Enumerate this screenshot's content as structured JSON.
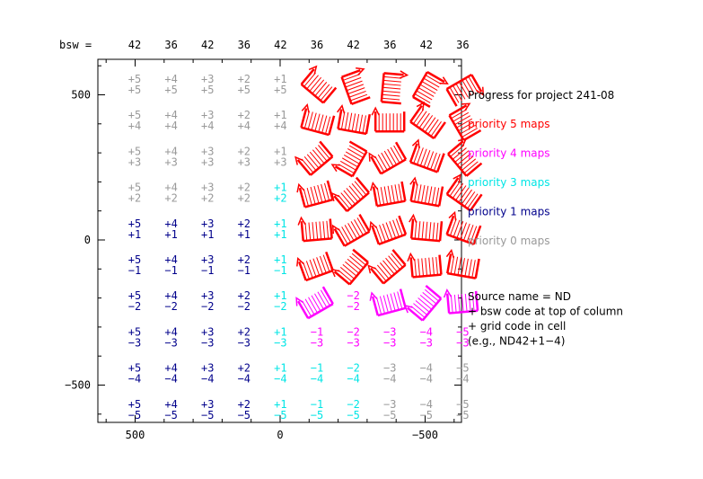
{
  "chart_data": {
    "type": "grid-map",
    "top_label": "bsw =",
    "x_ticks": [
      500,
      0,
      -500
    ],
    "y_ticks": [
      500,
      0,
      -500
    ],
    "xlim": [
      630,
      -630
    ],
    "ylim": [
      -630,
      630
    ],
    "bsw_codes": [
      "42",
      "36",
      "42",
      "36",
      "42",
      "36",
      "42",
      "36",
      "42",
      "36"
    ],
    "x_codes": [
      5,
      4,
      3,
      2,
      1,
      -1,
      -2,
      -3,
      -4,
      -5
    ],
    "y_codes": [
      5,
      4,
      3,
      2,
      1,
      -1,
      -2,
      -3,
      -4,
      -5
    ],
    "priority_grid": [
      [
        0,
        0,
        0,
        0,
        0,
        5,
        5,
        5,
        5,
        5
      ],
      [
        0,
        0,
        0,
        0,
        0,
        5,
        5,
        5,
        5,
        5
      ],
      [
        0,
        0,
        0,
        0,
        0,
        5,
        5,
        5,
        5,
        5
      ],
      [
        0,
        0,
        0,
        0,
        3,
        5,
        5,
        5,
        5,
        5
      ],
      [
        1,
        1,
        1,
        1,
        3,
        5,
        5,
        5,
        5,
        5
      ],
      [
        1,
        1,
        1,
        1,
        3,
        5,
        5,
        5,
        5,
        5
      ],
      [
        1,
        1,
        1,
        1,
        3,
        4,
        4,
        4,
        4,
        4
      ],
      [
        1,
        1,
        1,
        1,
        3,
        4,
        4,
        4,
        4,
        4
      ],
      [
        1,
        1,
        1,
        1,
        3,
        3,
        3,
        0,
        0,
        0
      ],
      [
        1,
        1,
        1,
        1,
        3,
        3,
        3,
        0,
        0,
        0
      ]
    ],
    "mapped": [
      [
        false,
        false,
        false,
        false,
        false,
        true,
        true,
        true,
        true,
        true
      ],
      [
        false,
        false,
        false,
        false,
        false,
        true,
        true,
        true,
        true,
        true
      ],
      [
        false,
        false,
        false,
        false,
        false,
        true,
        true,
        true,
        true,
        true
      ],
      [
        false,
        false,
        false,
        false,
        false,
        true,
        true,
        true,
        true,
        true
      ],
      [
        false,
        false,
        false,
        false,
        false,
        true,
        true,
        true,
        true,
        true
      ],
      [
        false,
        false,
        false,
        false,
        false,
        true,
        true,
        true,
        true,
        true
      ],
      [
        false,
        false,
        false,
        false,
        false,
        true,
        false,
        true,
        true,
        true
      ],
      [
        false,
        false,
        false,
        false,
        false,
        false,
        false,
        false,
        false,
        false
      ],
      [
        false,
        false,
        false,
        false,
        false,
        false,
        false,
        false,
        false,
        false
      ],
      [
        false,
        false,
        false,
        false,
        false,
        false,
        false,
        false,
        false,
        false
      ]
    ],
    "map_angles": [
      [
        0,
        0,
        0,
        0,
        0,
        40,
        70,
        95,
        120,
        150
      ],
      [
        0,
        0,
        0,
        0,
        0,
        15,
        10,
        0,
        35,
        60
      ],
      [
        0,
        0,
        0,
        0,
        0,
        320,
        300,
        330,
        20,
        50
      ],
      [
        0,
        0,
        0,
        0,
        0,
        345,
        320,
        350,
        10,
        35
      ],
      [
        0,
        0,
        0,
        0,
        0,
        355,
        330,
        340,
        5,
        20
      ],
      [
        0,
        0,
        0,
        0,
        0,
        340,
        310,
        320,
        355,
        10
      ],
      [
        0,
        0,
        0,
        0,
        0,
        330,
        0,
        345,
        310,
        355
      ],
      [
        0,
        0,
        0,
        0,
        0,
        0,
        0,
        0,
        0,
        0
      ],
      [
        0,
        0,
        0,
        0,
        0,
        0,
        0,
        0,
        0,
        0
      ],
      [
        0,
        0,
        0,
        0,
        0,
        0,
        0,
        0,
        0,
        0
      ]
    ],
    "legend": {
      "title": "Progress for project 241-08",
      "items": [
        {
          "label": "priority 5 maps",
          "priority": 5
        },
        {
          "label": "priority 4 maps",
          "priority": 4
        },
        {
          "label": "priority 3 maps",
          "priority": 3
        },
        {
          "label": "priority 1 maps",
          "priority": 1
        },
        {
          "label": "priority 0 maps",
          "priority": 0
        }
      ],
      "note_lines": [
        "Source name = ND",
        "+ bsw code at top of column",
        "+ grid code in cell",
        "(e.g., ND42+1−4)"
      ]
    },
    "colors": {
      "5": "#ff0000",
      "4": "#ff00ff",
      "3": "#00e5e5",
      "1": "#00008b",
      "0": "#999999",
      "axis": "#000000"
    }
  }
}
